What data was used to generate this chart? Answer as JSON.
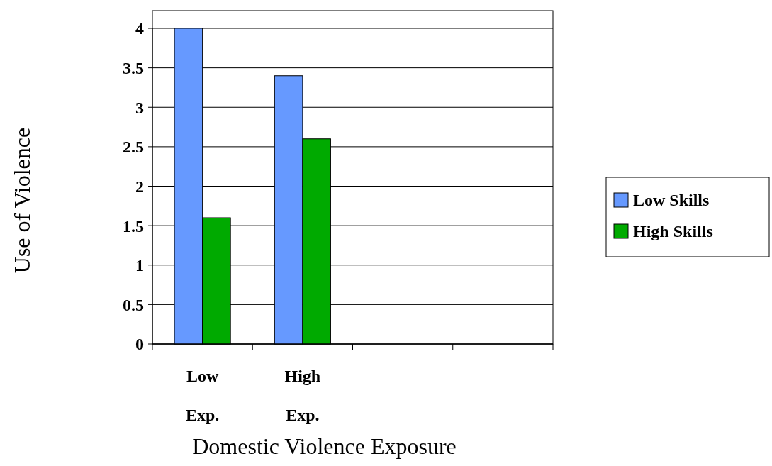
{
  "chart_data": {
    "type": "bar",
    "xlabel": "Domestic Violence Exposure",
    "ylabel": "Use of Violence",
    "categories": [
      "Low Exp.",
      "High Exp.",
      null,
      null
    ],
    "series": [
      {
        "name": "Low Skills",
        "color": "#6699ff",
        "values": [
          4,
          3.4,
          null,
          null
        ]
      },
      {
        "name": "High Skills",
        "color": "#00aa00",
        "values": [
          1.6,
          2.6,
          null,
          null
        ]
      }
    ],
    "ylim": [
      0,
      4
    ],
    "yticks": [
      0,
      0.5,
      1,
      1.5,
      2,
      2.5,
      3,
      3.5,
      4
    ],
    "grid": "y",
    "legend": "right"
  }
}
